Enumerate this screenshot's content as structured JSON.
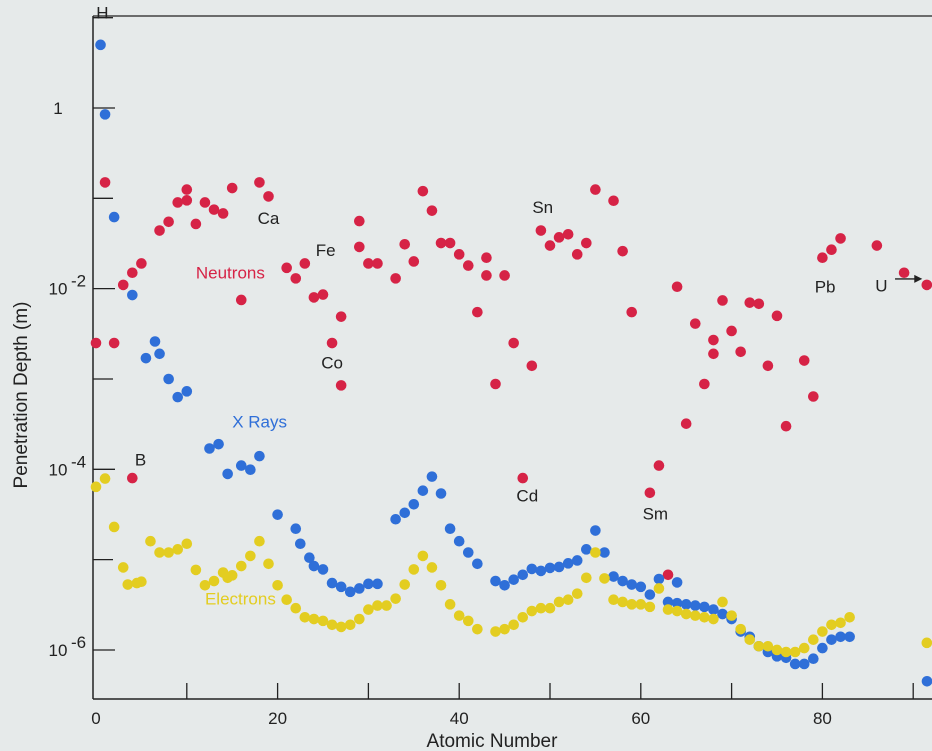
{
  "chart_data": {
    "type": "scatter",
    "title": "",
    "xlabel": "Atomic Number",
    "ylabel": "Penetration Depth (m)",
    "yscale": "log",
    "xlim": [
      0,
      92
    ],
    "ylim": [
      3e-07,
      20
    ],
    "grid": false,
    "x_ticks": [
      0,
      20,
      40,
      60,
      80
    ],
    "x_tick_labels": [
      "0",
      "20",
      "40",
      "60",
      "80"
    ],
    "y_ticks": [
      1,
      0.01,
      0.0001,
      1e-06
    ],
    "y_tick_labels": [
      "1",
      "10",
      "10",
      "10"
    ],
    "y_tick_exponents": [
      "",
      "-2",
      "-4",
      "-6"
    ],
    "colors": {
      "Neutrons": "#d62346",
      "X Rays": "#2f6fd8",
      "Electrons": "#e3cd21",
      "background": "#e6eaea"
    },
    "series": [
      {
        "name": "Neutrons",
        "points": [
          [
            0,
            0.0025
          ],
          [
            1,
            0.15
          ],
          [
            2,
            0.0025
          ],
          [
            3,
            0.011
          ],
          [
            4,
            8e-05
          ],
          [
            4,
            0.015
          ],
          [
            5,
            0.019
          ],
          [
            7,
            0.044
          ],
          [
            8,
            0.055
          ],
          [
            9,
            0.09
          ],
          [
            10,
            0.125
          ],
          [
            10,
            0.095
          ],
          [
            11,
            0.052
          ],
          [
            12,
            0.09
          ],
          [
            13,
            0.075
          ],
          [
            14,
            0.068
          ],
          [
            15,
            0.13
          ],
          [
            16,
            0.0075
          ],
          [
            18,
            0.15
          ],
          [
            19,
            0.105
          ],
          [
            21,
            0.017
          ],
          [
            22,
            0.013
          ],
          [
            23,
            0.019
          ],
          [
            24,
            0.008
          ],
          [
            25,
            0.0086
          ],
          [
            26,
            0.0025
          ],
          [
            27,
            0.00085
          ],
          [
            27,
            0.0049
          ],
          [
            29,
            0.056
          ],
          [
            29,
            0.029
          ],
          [
            30,
            0.019
          ],
          [
            31,
            0.019
          ],
          [
            33,
            0.013
          ],
          [
            34,
            0.031
          ],
          [
            35,
            0.02
          ],
          [
            36,
            0.12
          ],
          [
            37,
            0.073
          ],
          [
            38,
            0.032
          ],
          [
            39,
            0.032
          ],
          [
            40,
            0.024
          ],
          [
            41,
            0.018
          ],
          [
            42,
            0.0055
          ],
          [
            43,
            0.022
          ],
          [
            43,
            0.014
          ],
          [
            44,
            0.00088
          ],
          [
            45,
            0.014
          ],
          [
            46,
            0.0025
          ],
          [
            47,
            8e-05
          ],
          [
            48,
            0.0014
          ],
          [
            49,
            0.044
          ],
          [
            50,
            0.03
          ],
          [
            51,
            0.037
          ],
          [
            52,
            0.04
          ],
          [
            53,
            0.024
          ],
          [
            54,
            0.032
          ],
          [
            55,
            0.125
          ],
          [
            57,
            0.094
          ],
          [
            58,
            0.026
          ],
          [
            59,
            0.0055
          ],
          [
            61,
            5.5e-05
          ],
          [
            62,
            0.00011
          ],
          [
            63,
            6.8e-06
          ],
          [
            64,
            0.0105
          ],
          [
            65,
            0.00032
          ],
          [
            66,
            0.0041
          ],
          [
            67,
            0.00088
          ],
          [
            68,
            0.0019
          ],
          [
            68,
            0.0027
          ],
          [
            69,
            0.0074
          ],
          [
            70,
            0.0034
          ],
          [
            71,
            0.002
          ],
          [
            72,
            0.007
          ],
          [
            73,
            0.0068
          ],
          [
            74,
            0.0014
          ],
          [
            75,
            0.005
          ],
          [
            76,
            0.0003
          ],
          [
            78,
            0.0016
          ],
          [
            79,
            0.00064
          ],
          [
            80,
            0.022
          ],
          [
            81,
            0.027
          ],
          [
            82,
            0.036
          ],
          [
            86,
            0.03
          ],
          [
            89,
            0.015
          ],
          [
            91.5,
            0.011
          ]
        ]
      },
      {
        "name": "X Rays",
        "points": [
          [
            0.5,
            5.0
          ],
          [
            1,
            0.85
          ],
          [
            2,
            0.062
          ],
          [
            4,
            0.0085
          ],
          [
            5.5,
            0.0017
          ],
          [
            6.5,
            0.0026
          ],
          [
            7,
            0.0019
          ],
          [
            8,
            0.001
          ],
          [
            9,
            0.00063
          ],
          [
            10,
            0.00073
          ],
          [
            12.5,
            0.00017
          ],
          [
            13.5,
            0.00019
          ],
          [
            14.5,
            8.9e-05
          ],
          [
            16,
            0.00011
          ],
          [
            17,
            9.9e-05
          ],
          [
            18,
            0.00014
          ],
          [
            20,
            3.15e-05
          ],
          [
            22,
            2.2e-05
          ],
          [
            22.5,
            1.5e-05
          ],
          [
            23.5,
            1.05e-05
          ],
          [
            24,
            8.5e-06
          ],
          [
            25,
            7.8e-06
          ],
          [
            26,
            5.5e-06
          ],
          [
            27,
            5e-06
          ],
          [
            28,
            4.4e-06
          ],
          [
            29,
            4.8e-06
          ],
          [
            30,
            5.4e-06
          ],
          [
            31,
            5.4e-06
          ],
          [
            33,
            2.8e-05
          ],
          [
            34,
            3.3e-05
          ],
          [
            35,
            4.1e-05
          ],
          [
            36,
            5.8e-05
          ],
          [
            37,
            8.3e-05
          ],
          [
            38,
            5.4e-05
          ],
          [
            39,
            2.2e-05
          ],
          [
            40,
            1.6e-05
          ],
          [
            41,
            1.2e-05
          ],
          [
            42,
            9e-06
          ],
          [
            44,
            5.8e-06
          ],
          [
            45,
            5.2e-06
          ],
          [
            46,
            6e-06
          ],
          [
            47,
            6.8e-06
          ],
          [
            48,
            7.9e-06
          ],
          [
            49,
            7.5e-06
          ],
          [
            50,
            8.1e-06
          ],
          [
            51,
            8.3e-06
          ],
          [
            52,
            9.1e-06
          ],
          [
            53,
            9.8e-06
          ],
          [
            54,
            1.3e-05
          ],
          [
            55,
            2.1e-05
          ],
          [
            56,
            1.2e-05
          ],
          [
            57,
            6.5e-06
          ],
          [
            58,
            5.8e-06
          ],
          [
            59,
            5.3e-06
          ],
          [
            60,
            5e-06
          ],
          [
            61,
            4.1e-06
          ],
          [
            62,
            6.1e-06
          ],
          [
            63,
            3.4e-06
          ],
          [
            64,
            5.6e-06
          ],
          [
            64,
            3.3e-06
          ],
          [
            65,
            3.2e-06
          ],
          [
            66,
            3.1e-06
          ],
          [
            67,
            3e-06
          ],
          [
            68,
            2.8e-06
          ],
          [
            69,
            2.5e-06
          ],
          [
            70,
            2.2e-06
          ],
          [
            71,
            1.6e-06
          ],
          [
            72,
            1.4e-06
          ],
          [
            73,
            1.1e-06
          ],
          [
            74,
            9.5e-07
          ],
          [
            75,
            8.5e-07
          ],
          [
            76,
            8.2e-07
          ],
          [
            77,
            7e-07
          ],
          [
            78,
            7e-07
          ],
          [
            79,
            8e-07
          ],
          [
            80,
            1.05e-06
          ],
          [
            81,
            1.3e-06
          ],
          [
            82,
            1.4e-06
          ],
          [
            83,
            1.4e-06
          ],
          [
            92,
            4.5e-07
          ]
        ]
      },
      {
        "name": "Electrons",
        "points": [
          [
            0,
            6.4e-05
          ],
          [
            1,
            7.9e-05
          ],
          [
            2,
            2.3e-05
          ],
          [
            3,
            8.2e-06
          ],
          [
            3.5,
            5.3e-06
          ],
          [
            4.5,
            5.5e-06
          ],
          [
            5,
            5.7e-06
          ],
          [
            6,
            1.6e-05
          ],
          [
            7,
            1.2e-05
          ],
          [
            8,
            1.2e-05
          ],
          [
            9,
            1.3e-05
          ],
          [
            10,
            1.5e-05
          ],
          [
            11,
            7.7e-06
          ],
          [
            12,
            5.2e-06
          ],
          [
            13,
            5.8e-06
          ],
          [
            14,
            7.2e-06
          ],
          [
            14.5,
            6.3e-06
          ],
          [
            15,
            6.7e-06
          ],
          [
            16,
            8.5e-06
          ],
          [
            17,
            1.1e-05
          ],
          [
            18,
            1.6e-05
          ],
          [
            19,
            9e-06
          ],
          [
            20,
            5.2e-06
          ],
          [
            21,
            3.6e-06
          ],
          [
            22,
            2.9e-06
          ],
          [
            23,
            2.3e-06
          ],
          [
            24,
            2.2e-06
          ],
          [
            25,
            2.1e-06
          ],
          [
            26,
            1.9e-06
          ],
          [
            27,
            1.8e-06
          ],
          [
            28,
            1.9e-06
          ],
          [
            29,
            2.2e-06
          ],
          [
            30,
            2.8e-06
          ],
          [
            31,
            3.1e-06
          ],
          [
            32,
            3.1e-06
          ],
          [
            33,
            3.7e-06
          ],
          [
            34,
            5.3e-06
          ],
          [
            35,
            7.8e-06
          ],
          [
            36,
            1.1e-05
          ],
          [
            37,
            8.2e-06
          ],
          [
            38,
            5.2e-06
          ],
          [
            39,
            3.2e-06
          ],
          [
            40,
            2.4e-06
          ],
          [
            41,
            2.1e-06
          ],
          [
            42,
            1.7e-06
          ],
          [
            44,
            1.6e-06
          ],
          [
            45,
            1.7e-06
          ],
          [
            46,
            1.9e-06
          ],
          [
            47,
            2.3e-06
          ],
          [
            48,
            2.7e-06
          ],
          [
            49,
            2.9e-06
          ],
          [
            50,
            2.9e-06
          ],
          [
            51,
            3.4e-06
          ],
          [
            52,
            3.6e-06
          ],
          [
            53,
            4.2e-06
          ],
          [
            54,
            6.3e-06
          ],
          [
            55,
            1.2e-05
          ],
          [
            56,
            6.2e-06
          ],
          [
            57,
            3.6e-06
          ],
          [
            58,
            3.4e-06
          ],
          [
            59,
            3.2e-06
          ],
          [
            60,
            3.2e-06
          ],
          [
            61,
            3e-06
          ],
          [
            62,
            4.8e-06
          ],
          [
            63,
            2.8e-06
          ],
          [
            64,
            2.7e-06
          ],
          [
            65,
            2.5e-06
          ],
          [
            66,
            2.4e-06
          ],
          [
            67,
            2.3e-06
          ],
          [
            68,
            2.2e-06
          ],
          [
            69,
            3.4e-06
          ],
          [
            70,
            2.4e-06
          ],
          [
            71,
            1.7e-06
          ],
          [
            72,
            1.3e-06
          ],
          [
            73,
            1.1e-06
          ],
          [
            74,
            1.1e-06
          ],
          [
            75,
            1e-06
          ],
          [
            76,
            9.5e-07
          ],
          [
            77,
            9.5e-07
          ],
          [
            78,
            1.05e-06
          ],
          [
            79,
            1.3e-06
          ],
          [
            80,
            1.6e-06
          ],
          [
            81,
            1.9e-06
          ],
          [
            82,
            2e-06
          ],
          [
            83,
            2.3e-06
          ],
          [
            91.5,
            1.2e-06
          ]
        ]
      }
    ],
    "series_labels": [
      {
        "text": "Neutrons",
        "series": "Neutrons",
        "x": 11,
        "y": 0.013
      },
      {
        "text": "X Rays",
        "series": "X Rays",
        "x": 15,
        "y": 0.00029
      },
      {
        "text": "Electrons",
        "series": "Electrons",
        "x": 12,
        "y": 3.2e-06
      }
    ],
    "element_labels": [
      {
        "text": "H",
        "x": 0.7,
        "y": 9.8
      },
      {
        "text": "B",
        "x": 4.9,
        "y": 0.00011
      },
      {
        "text": "Ca",
        "x": 19,
        "y": 0.052
      },
      {
        "text": "Fe",
        "x": 25.3,
        "y": 0.023
      },
      {
        "text": "Co",
        "x": 26,
        "y": 0.0013
      },
      {
        "text": "Sn",
        "x": 49.2,
        "y": 0.069
      },
      {
        "text": "Cd",
        "x": 47.5,
        "y": 4.4e-05
      },
      {
        "text": "Sm",
        "x": 61.6,
        "y": 2.8e-05
      },
      {
        "text": "Pb",
        "x": 80.3,
        "y": 0.0091
      },
      {
        "text": "U",
        "x": 86.5,
        "y": 0.0093
      }
    ],
    "annotations": [
      {
        "type": "arrow",
        "from": [
          88,
          0.011
        ],
        "to": [
          91,
          0.011
        ]
      }
    ]
  }
}
